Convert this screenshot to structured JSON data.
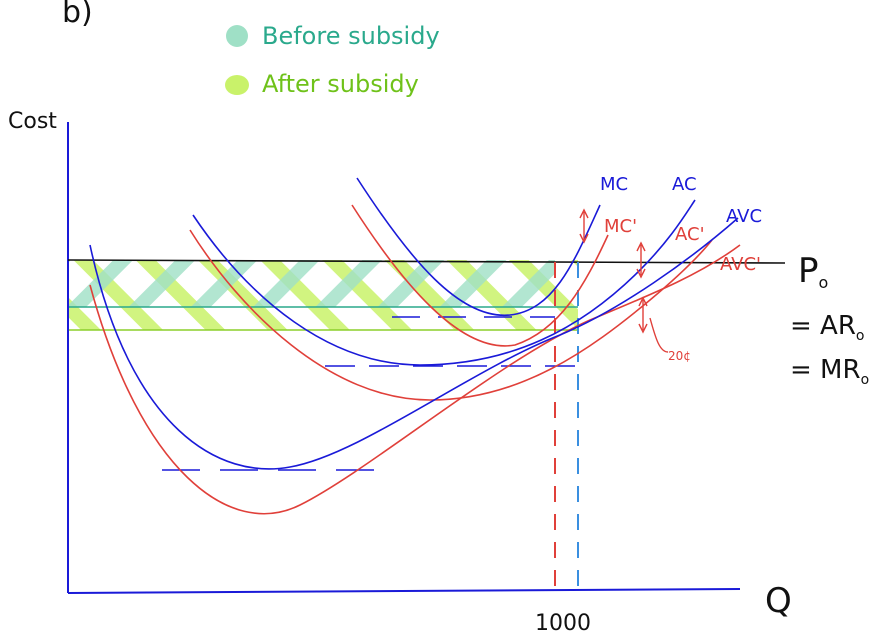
{
  "corner_mark": "b)",
  "legend": {
    "before_label": "Before subsidy",
    "after_label": "After subsidy",
    "before_color": "#9fe0c6",
    "after_color": "#c9f26a"
  },
  "axes": {
    "y_label": "Cost",
    "x_label": "Q",
    "x_tick": "1000"
  },
  "curves": {
    "mc": "MC",
    "ac": "AC",
    "avc": "AVC",
    "mc_new": "MC'",
    "ac_new": "AC'",
    "avc_new": "AVC'"
  },
  "price": {
    "p0": "P",
    "p0_sub": "o",
    "ar": "= AR",
    "ar_sub": "o",
    "mr": "= MR",
    "mr_sub": "o"
  },
  "subsidy_label": "20¢",
  "colors": {
    "original_curves": "#1a1ad8",
    "new_curves": "#e0403a",
    "price_line": "#111111",
    "q_before_line": "#e0403a",
    "q_after_line": "#3a8fe0"
  }
}
